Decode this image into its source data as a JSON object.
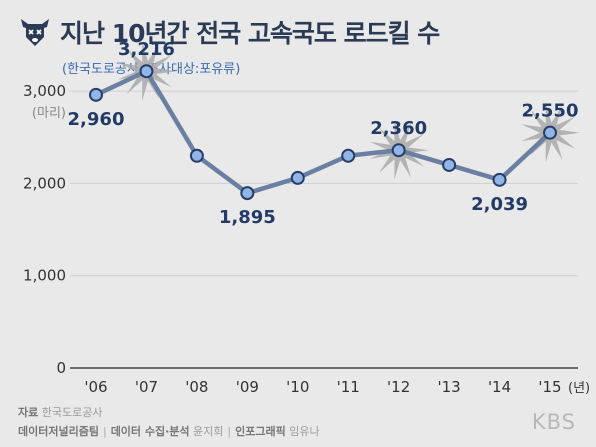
{
  "title": "지난 10년간 전국 고속국도 로드킬 수",
  "subtitle": "(한국도로공사, 조사대상:포유류)",
  "icon": "roadkill-deer-icon",
  "colors": {
    "line": "#6a7fa1",
    "point_fill": "#8fb6e6",
    "point_stroke": "#2a3c66",
    "label": "#223a66",
    "splat": "#a9a9a9",
    "axis_text": "#333333",
    "grid": "#cfcfcf"
  },
  "chart_data": {
    "type": "line",
    "title": "지난 10년간 전국 고속국도 로드킬 수",
    "categories": [
      "'06",
      "'07",
      "'08",
      "'09",
      "'10",
      "'11",
      "'12",
      "'13",
      "'14",
      "'15"
    ],
    "x_unit_suffix": "(년)",
    "values": [
      2960,
      3216,
      2300,
      1895,
      2060,
      2300,
      2360,
      2200,
      2039,
      2550
    ],
    "labeled_points": {
      "0": "2,960",
      "1": "3,216",
      "3": "1,895",
      "6": "2,360",
      "8": "2,039",
      "9": "2,550"
    },
    "highlighted_points": [
      1,
      6,
      9
    ],
    "y_unit": "(마리)",
    "yticks": [
      0,
      1000,
      2000,
      3000
    ],
    "ytick_labels": [
      "0",
      "1,000",
      "2,000",
      "3,000"
    ],
    "ylim": [
      0,
      3500
    ],
    "grid": false
  },
  "footer": {
    "source_label": "자료",
    "source_value": "한국도로공사",
    "team": "데이터저널리즘팀",
    "data_label": "데이터 수집·분석",
    "data_person": "윤지희",
    "graphic_label": "인포그래픽",
    "graphic_person": "임유나",
    "brand": "KBS"
  }
}
